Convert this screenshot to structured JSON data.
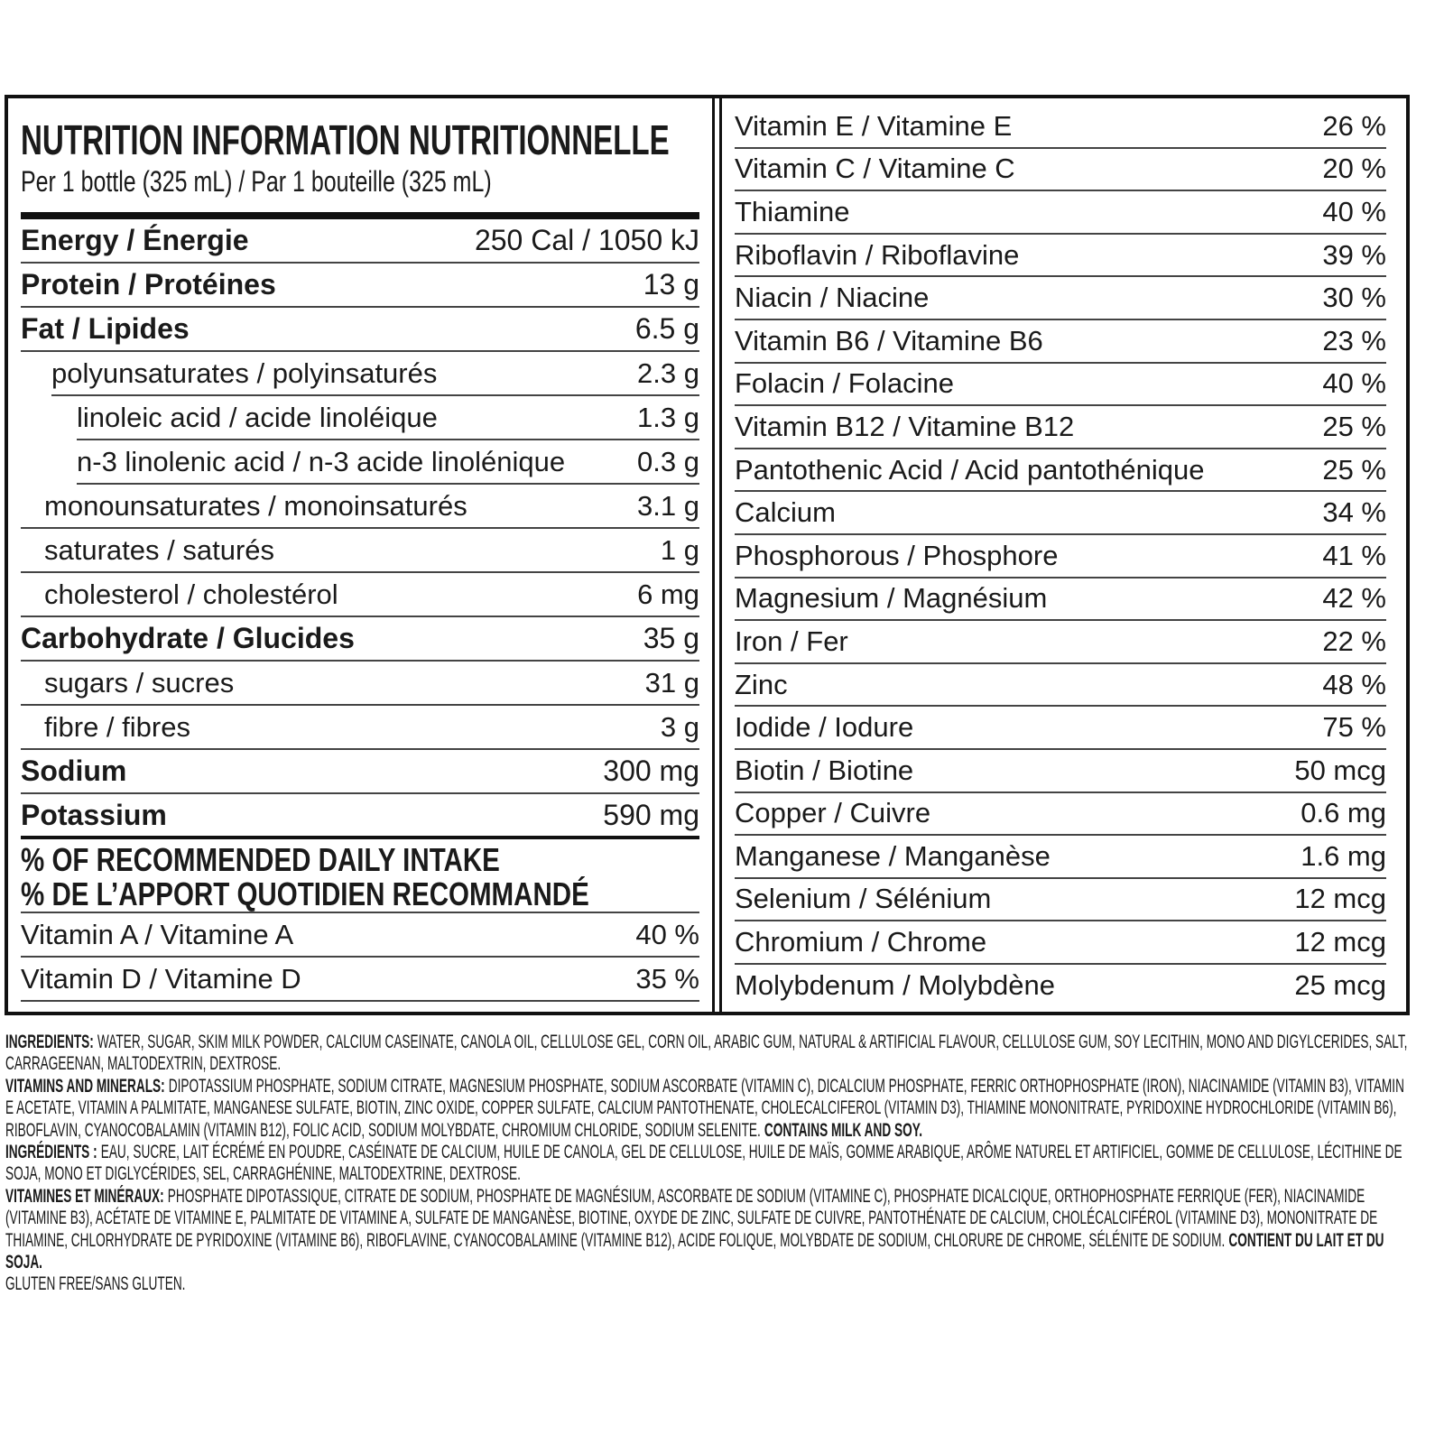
{
  "header": {
    "title": "NUTRITION INFORMATION NUTRITIONNELLE",
    "serving": "Per 1 bottle (325 mL) / Par 1 bouteille (325 mL)"
  },
  "nutrients": [
    {
      "label": "Energy / Énergie",
      "amount": "250 Cal / 1050 kJ"
    },
    {
      "label": "Protein / Protéines",
      "amount": "13 g"
    },
    {
      "label": "Fat / Lipides",
      "amount": "6.5 g"
    },
    {
      "label": "polyunsaturates / polyinsaturés",
      "amount": "2.3 g"
    },
    {
      "label": "linoleic acid / acide linoléique",
      "amount": "1.3 g"
    },
    {
      "label": "n-3 linolenic acid / n-3 acide linolénique",
      "amount": "0.3 g"
    },
    {
      "label": "monounsaturates / monoinsaturés",
      "amount": "3.1 g"
    },
    {
      "label": "saturates / saturés",
      "amount": "1 g"
    },
    {
      "label": "cholesterol / cholestérol",
      "amount": "6 mg"
    },
    {
      "label": "Carbohydrate / Glucides",
      "amount": "35 g"
    },
    {
      "label": "sugars / sucres",
      "amount": "31 g"
    },
    {
      "label": "fibre / fibres",
      "amount": "3 g"
    },
    {
      "label": "Sodium",
      "amount": "300 mg"
    },
    {
      "label": "Potassium",
      "amount": "590 mg"
    }
  ],
  "daily_intake": {
    "heading": [
      "% OF RECOMMENDED DAILY INTAKE",
      "% DE L’APPORT QUOTIDIEN RECOMMANDÉ"
    ],
    "left": [
      {
        "label": "Vitamin A / Vitamine A",
        "amount": "40 %"
      },
      {
        "label": "Vitamin D / Vitamine D",
        "amount": "35 %"
      }
    ],
    "right": [
      {
        "label": "Vitamin E / Vitamine E",
        "amount": "26 %"
      },
      {
        "label": "Vitamin C / Vitamine C",
        "amount": "20 %"
      },
      {
        "label": "Thiamine",
        "amount": "40 %"
      },
      {
        "label": "Riboflavin / Riboflavine",
        "amount": "39 %"
      },
      {
        "label": "Niacin / Niacine",
        "amount": "30 %"
      },
      {
        "label": "Vitamin B6  / Vitamine B6",
        "amount": "23 %"
      },
      {
        "label": "Folacin / Folacine",
        "amount": "40 %"
      },
      {
        "label": "Vitamin B12 / Vitamine B12",
        "amount": "25 %"
      },
      {
        "label": "Pantothenic Acid / Acid pantothénique",
        "amount": "25 %"
      },
      {
        "label": "Calcium",
        "amount": "34 %"
      },
      {
        "label": "Phosphorous / Phosphore",
        "amount": "41 %"
      },
      {
        "label": "Magnesium / Magnésium",
        "amount": "42 %"
      },
      {
        "label": "Iron / Fer",
        "amount": "22 %"
      },
      {
        "label": "Zinc",
        "amount": "48 %"
      },
      {
        "label": "Iodide / Iodure",
        "amount": "75 %"
      },
      {
        "label": "Biotin / Biotine",
        "amount": "50 mcg"
      },
      {
        "label": "Copper / Cuivre",
        "amount": "0.6 mg"
      },
      {
        "label": "Manganese / Manganèse",
        "amount": "1.6 mg"
      },
      {
        "label": "Selenium / Sélénium",
        "amount": "12 mcg"
      },
      {
        "label": "Chromium / Chrome",
        "amount": "12 mcg"
      },
      {
        "label": "Molybdenum / Molybdène",
        "amount": "25 mcg"
      }
    ]
  },
  "ingredients": [
    {
      "label": "INGREDIENTS:",
      "text": "WATER, SUGAR, SKIM MILK POWDER, CALCIUM CASEINATE, CANOLA OIL, CELLULOSE GEL, CORN OIL, ARABIC GUM, NATURAL & ARTIFICIAL FLAVOUR, CELLULOSE GUM, SOY LECITHIN, MONO AND DIGYLCERIDES, SALT, CARRAGEENAN, MALTODEXTRIN, DEXTROSE."
    },
    {
      "label": "VITAMINS AND MINERALS:",
      "text": "DIPOTASSIUM PHOSPHATE, SODIUM CITRATE, MAGNESIUM PHOSPHATE, SODIUM ASCORBATE (VITAMIN C), DICALCIUM PHOSPHATE, FERRIC ORTHOPHOSPHATE (IRON), NIACINAMIDE (VITAMIN B3), VITAMIN E ACETATE, VITAMIN A PALMITATE, MANGANESE SULFATE, BIOTIN, ZINC OXIDE, COPPER SULFATE, CALCIUM PANTOTHENATE, CHOLECALCIFEROL (VITAMIN D3), THIAMINE MONONITRATE, PYRIDOXINE HYDROCHLORIDE (VITAMIN B6), RIBOFLAVIN, CYANOCOBALAMIN (VITAMIN B12), FOLIC ACID, SODIUM MOLYBDATE, CHROMIUM CHLORIDE, SODIUM SELENITE.",
      "allergen": "CONTAINS MILK AND SOY."
    },
    {
      "label": "INGRÉDIENTS :",
      "text": "EAU, SUCRE, LAIT ÉCRÉMÉ EN POUDRE, CASÉINATE DE CALCIUM, HUILE DE CANOLA, GEL DE CELLULOSE, HUILE DE MAÏS, GOMME ARABIQUE, ARÔME NATUREL ET ARTIFICIEL, GOMME DE CELLULOSE, LÉCITHINE DE SOJA, MONO ET DIGLYCÉRIDES, SEL, CARRAGHÉNINE, MALTODEXTRINE, DEXTROSE."
    },
    {
      "label": "VITAMINES ET MINÉRAUX:",
      "text": "PHOSPHATE DIPOTASSIQUE, CITRATE DE SODIUM, PHOSPHATE DE MAGNÉSIUM, ASCORBATE DE SODIUM (VITAMINE C), PHOSPHATE DICALCIQUE, ORTHOPHOSPHATE FERRIQUE (FER), NIACINAMIDE (VITAMINE B3), ACÉTATE DE VITAMINE E, PALMITATE DE VITAMINE A, SULFATE DE MANGANÈSE, BIOTINE, OXYDE DE ZINC, SULFATE DE CUIVRE, PANTOTHÉNATE DE CALCIUM, CHOLÉCALCIFÉROL (VITAMINE D3), MONONITRATE DE THIAMINE, CHLORHYDRATE DE PYRIDOXINE (VITAMINE B6), RIBOFLAVINE, CYANOCOBALAMINE (VITAMINE B12), ACIDE FOLIQUE, MOLYBDATE DE SODIUM, CHLORURE DE CHROME, SÉLÉNITE DE SODIUM.",
      "allergen": "CONTIENT DU LAIT ET DU SOJA."
    },
    {
      "text": "GLUTEN FREE/SANS GLUTEN."
    }
  ]
}
